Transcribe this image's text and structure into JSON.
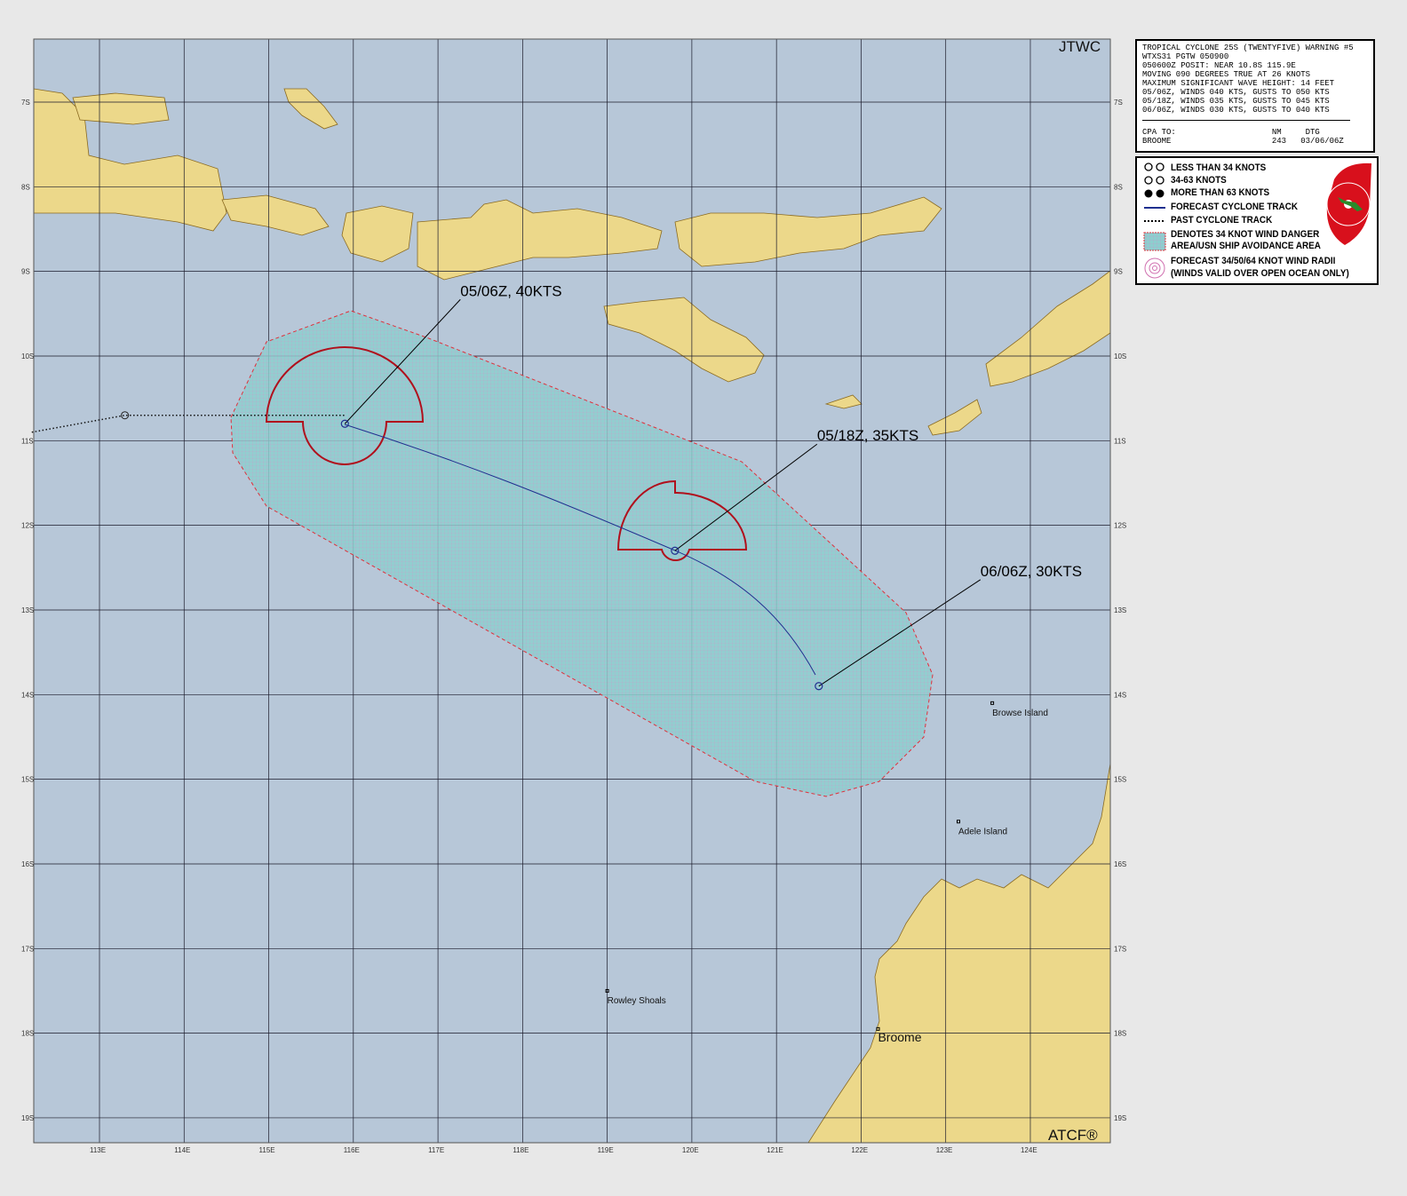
{
  "map": {
    "agency_label": "JTWC",
    "software_label": "ATCF®",
    "lon_ticks": [
      "113E",
      "114E",
      "115E",
      "116E",
      "117E",
      "118E",
      "119E",
      "120E",
      "121E",
      "122E",
      "123E",
      "124E"
    ],
    "lat_ticks": [
      "7S",
      "8S",
      "9S",
      "10S",
      "11S",
      "12S",
      "13S",
      "14S",
      "15S",
      "16S",
      "17S",
      "18S",
      "19S"
    ],
    "colors": {
      "ocean": "#b7c7d8",
      "land": "#ecd88a",
      "grid": "#1a1a2a",
      "track": "#1f2f8f",
      "radii": "#b0101c",
      "danger": "#e0303a",
      "danger_fill": "#8ccfcf"
    },
    "forecast_points": [
      {
        "label": "05/06Z, 40KTS",
        "lat": -10.8,
        "lon": 115.9
      },
      {
        "label": "05/18Z, 35KTS",
        "lat": -12.3,
        "lon": 119.8
      },
      {
        "label": "06/06Z, 30KTS",
        "lat": -13.9,
        "lon": 121.5
      }
    ],
    "past_track": [
      {
        "lat": -10.9,
        "lon": 112.2
      },
      {
        "lat": -10.7,
        "lon": 113.3
      },
      {
        "lat": -10.7,
        "lon": 115.9
      }
    ],
    "places": [
      {
        "name": "Browse Island",
        "lat": -14.1,
        "lon": 123.55
      },
      {
        "name": "Adele Island",
        "lat": -15.5,
        "lon": 123.15
      },
      {
        "name": "Rowley Shoals",
        "lat": -17.5,
        "lon": 119.0
      },
      {
        "name": "Broome",
        "lat": -17.95,
        "lon": 122.2
      }
    ]
  },
  "warning": {
    "lines": [
      "TROPICAL CYCLONE 25S (TWENTYFIVE) WARNING #5",
      "WTXS31 PGTW 050900",
      "050600Z POSIT: NEAR 10.8S 115.9E",
      "MOVING 090 DEGREES TRUE AT 26 KNOTS",
      "MAXIMUM SIGNIFICANT WAVE HEIGHT: 14 FEET",
      "05/06Z, WINDS 040 KTS, GUSTS TO 050 KTS",
      "05/18Z, WINDS 035 KTS, GUSTS TO 045 KTS",
      "06/06Z, WINDS 030 KTS, GUSTS TO 040 KTS"
    ],
    "cpa_header": "CPA TO:                    NM     DTG",
    "cpa_row": "BROOME                     243   03/06/06Z"
  },
  "legend": {
    "items": [
      "LESS THAN 34 KNOTS",
      "34-63 KNOTS",
      "MORE THAN 63 KNOTS",
      "FORECAST CYCLONE TRACK",
      "PAST CYCLONE TRACK",
      "DENOTES 34 KNOT WIND DANGER",
      "AREA/USN SHIP AVOIDANCE AREA",
      "FORECAST 34/50/64 KNOT WIND RADII",
      "(WINDS VALID OVER OPEN OCEAN ONLY)"
    ],
    "seal_text": "JOINT TYPHOON WARNING CENTER PEARL HARBOR HAWAII"
  }
}
